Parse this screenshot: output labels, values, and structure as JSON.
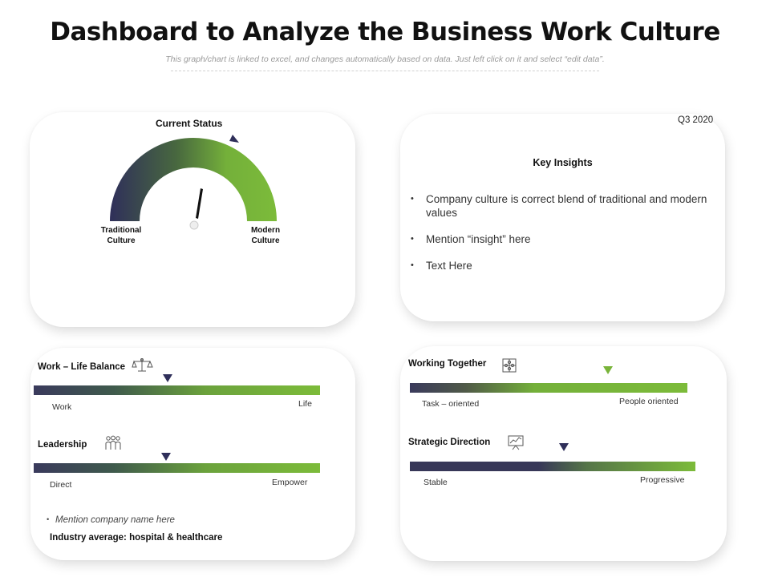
{
  "header": {
    "title": "Dashboard to Analyze the Business Work Culture",
    "subtitle": "This graph/chart is linked to excel, and changes automatically based on data. Just left click on it and select “edit data”."
  },
  "status_card": {
    "title": "Current Status",
    "left_label": "Traditional\nCulture",
    "right_label": "Modern\nCulture",
    "gauge_colors": [
      "#2f2f5a",
      "#7cbb3a"
    ]
  },
  "insights_card": {
    "period": "Q3 2020",
    "title": "Key Insights",
    "bullets": [
      "Company culture is correct blend of traditional and modern values",
      "Mention “insight” here",
      "Text Here"
    ]
  },
  "metrics": {
    "work_life": {
      "title": "Work – Life Balance",
      "left": "Work",
      "right": "Life",
      "icon": "scale-balance-icon"
    },
    "leadership": {
      "title": "Leadership",
      "left": "Direct",
      "right": "Empower",
      "icon": "people-group-icon"
    },
    "working_together": {
      "title": "Working Together",
      "left": "Task – oriented",
      "right": "People oriented",
      "icon": "puzzle-icon"
    },
    "strategic_direction": {
      "title": "Strategic Direction",
      "left": "Stable",
      "right": "Progressive",
      "icon": "presentation-board-icon"
    }
  },
  "footer_left": {
    "note": "Mention company name here",
    "industry": "Industry average: hospital & healthcare"
  }
}
